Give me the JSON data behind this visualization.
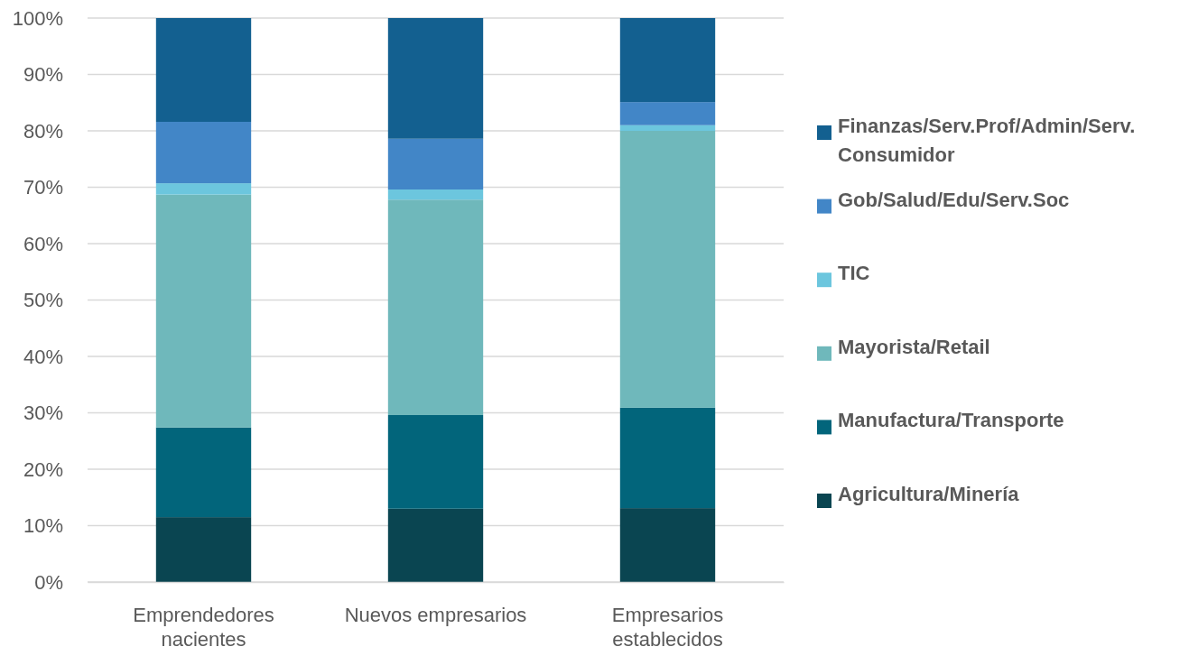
{
  "chart_data": {
    "type": "bar",
    "stacked": true,
    "categories": [
      "Emprendedores nacientes",
      "Nuevos empresarios",
      "Empresarios establecidos"
    ],
    "series": [
      {
        "name": "Agricultura/Minería",
        "color": "#0a4551",
        "values": [
          11.5,
          13.0,
          13.1
        ]
      },
      {
        "name": "Manufactura/Transporte",
        "color": "#02657b",
        "values": [
          15.9,
          16.6,
          17.8
        ]
      },
      {
        "name": "Mayorista/Retail",
        "color": "#6fb8bb",
        "values": [
          41.3,
          38.2,
          49.1
        ]
      },
      {
        "name": "TIC",
        "color": "#6cc6de",
        "values": [
          2.0,
          1.8,
          1.0
        ]
      },
      {
        "name": "Gob/Salud/Edu/Serv.Soc",
        "color": "#4286c7",
        "values": [
          10.9,
          9.0,
          4.1
        ]
      },
      {
        "name": "Finanzas/Serv.Prof/Admin/Serv. Consumidor",
        "color": "#136090",
        "values": [
          18.4,
          21.4,
          14.9
        ]
      }
    ],
    "ylim": [
      0,
      100
    ],
    "yticks": [
      {
        "value": 0,
        "label": "0%"
      },
      {
        "value": 10,
        "label": "10%"
      },
      {
        "value": 20,
        "label": "20%"
      },
      {
        "value": 30,
        "label": "30%"
      },
      {
        "value": 40,
        "label": "40%"
      },
      {
        "value": 50,
        "label": "50%"
      },
      {
        "value": 60,
        "label": "60%"
      },
      {
        "value": 70,
        "label": "70%"
      },
      {
        "value": 80,
        "label": "80%"
      },
      {
        "value": 90,
        "label": "90%"
      },
      {
        "value": 100,
        "label": "100%"
      }
    ],
    "grid": "y",
    "legend": "right"
  }
}
